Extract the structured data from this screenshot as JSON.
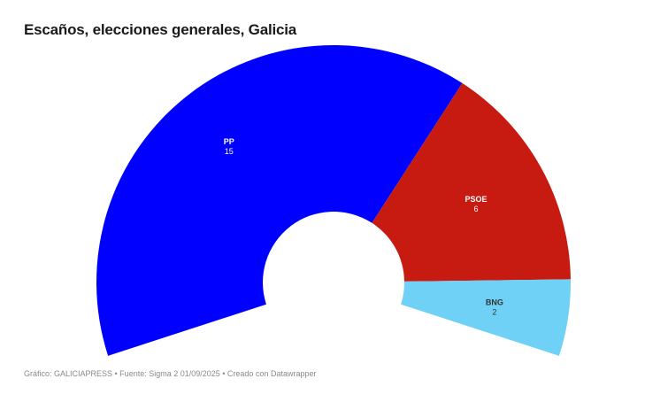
{
  "header": {
    "title": "Escaños, elecciones generales, Galicia"
  },
  "footer": {
    "text": "Gráfico: GALICIAPRESS • Fuente: Sigma 2 01/09/2025 • Creado con Datawrapper"
  },
  "chart_data": {
    "type": "pie",
    "subtype": "parliament-arc",
    "title": "Escaños, elecciones generales, Galicia",
    "categories": [
      "PP",
      "PSOE",
      "BNG"
    ],
    "values": [
      15,
      6,
      2
    ],
    "total": 23,
    "colors": [
      "#0000ff",
      "#c71b12",
      "#6fd1f5"
    ],
    "label_colors": [
      "#ffffff",
      "#ffffff",
      "#333333"
    ],
    "source": "Sigma 2 01/09/2025"
  }
}
